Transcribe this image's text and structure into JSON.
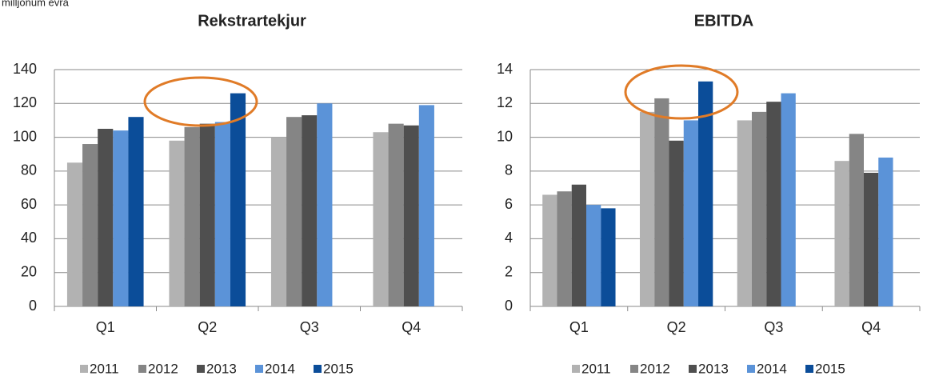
{
  "chart_data": [
    {
      "type": "bar",
      "title": "Rekstrartekjur",
      "subtitle": "milljónum evra",
      "categories": [
        "Q1",
        "Q2",
        "Q3",
        "Q4"
      ],
      "series": [
        {
          "name": "2011",
          "color": "#b2b2b2",
          "values": [
            85,
            98,
            100,
            103
          ]
        },
        {
          "name": "2012",
          "color": "#858585",
          "values": [
            96,
            106,
            112,
            108
          ]
        },
        {
          "name": "2013",
          "color": "#4f4f4f",
          "values": [
            105,
            108,
            113,
            107
          ]
        },
        {
          "name": "2014",
          "color": "#5b93d8",
          "values": [
            104,
            109,
            120,
            119
          ]
        },
        {
          "name": "2015",
          "color": "#0b4d99",
          "values": [
            112,
            126,
            null,
            null
          ]
        }
      ],
      "ylim": [
        0,
        140
      ],
      "yticks": [
        0,
        20,
        40,
        60,
        80,
        100,
        120,
        140
      ],
      "grid": true,
      "legend": "bottom"
    },
    {
      "type": "bar",
      "title": "EBITDA",
      "categories": [
        "Q1",
        "Q2",
        "Q3",
        "Q4"
      ],
      "series": [
        {
          "name": "2011",
          "color": "#b2b2b2",
          "values": [
            6.6,
            11.5,
            11.0,
            8.6
          ]
        },
        {
          "name": "2012",
          "color": "#858585",
          "values": [
            6.8,
            12.3,
            11.5,
            10.2
          ]
        },
        {
          "name": "2013",
          "color": "#4f4f4f",
          "values": [
            7.2,
            9.8,
            12.1,
            7.9
          ]
        },
        {
          "name": "2014",
          "color": "#5b93d8",
          "values": [
            6.0,
            11.0,
            12.6,
            8.8
          ]
        },
        {
          "name": "2015",
          "color": "#0b4d99",
          "values": [
            5.8,
            13.3,
            null,
            null
          ]
        }
      ],
      "ylim": [
        0,
        14
      ],
      "yticks": [
        0,
        2,
        4,
        6,
        8,
        10,
        12,
        14
      ],
      "grid": true,
      "legend": "bottom"
    }
  ]
}
